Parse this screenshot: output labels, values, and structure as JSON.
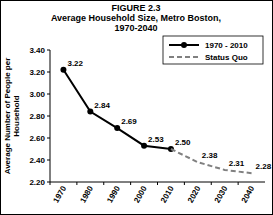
{
  "chart_data": {
    "type": "line",
    "title": "FIGURE 2.3",
    "subtitle": [
      "Average Household Size, Metro Boston,",
      "1970-2040"
    ],
    "y_label": [
      "Average Number of People per",
      "Household"
    ],
    "categories": [
      "1970",
      "1980",
      "1990",
      "2000",
      "2010",
      "2020",
      "2030",
      "2040"
    ],
    "series": [
      {
        "name": "1970 - 2010",
        "color": "#000000",
        "marker": "circle",
        "line_style": "solid",
        "values": [
          3.22,
          2.84,
          2.69,
          2.53,
          2.5,
          null,
          null,
          null
        ],
        "value_labels": [
          "3.22",
          "2.84",
          "2.69",
          "2.53",
          "2.50",
          null,
          null,
          null
        ]
      },
      {
        "name": "Status Quo",
        "color": "#808080",
        "marker": "none",
        "line_style": "dashed",
        "values": [
          null,
          null,
          null,
          null,
          2.5,
          2.38,
          2.31,
          2.28
        ],
        "value_labels": [
          null,
          null,
          null,
          null,
          null,
          "2.38",
          "2.31",
          "2.28"
        ]
      }
    ],
    "ylim": [
      2.2,
      3.4
    ],
    "yticks": [
      {
        "value": 2.2,
        "label": "2.20"
      },
      {
        "value": 2.4,
        "label": "2.40"
      },
      {
        "value": 2.6,
        "label": "2.60"
      },
      {
        "value": 2.8,
        "label": "2.80"
      },
      {
        "value": 3.0,
        "label": "3.00"
      },
      {
        "value": 3.2,
        "label": "3.20"
      },
      {
        "value": 3.4,
        "label": "3.40"
      }
    ],
    "grid": false,
    "legend": "top-right",
    "data_labels": true
  }
}
